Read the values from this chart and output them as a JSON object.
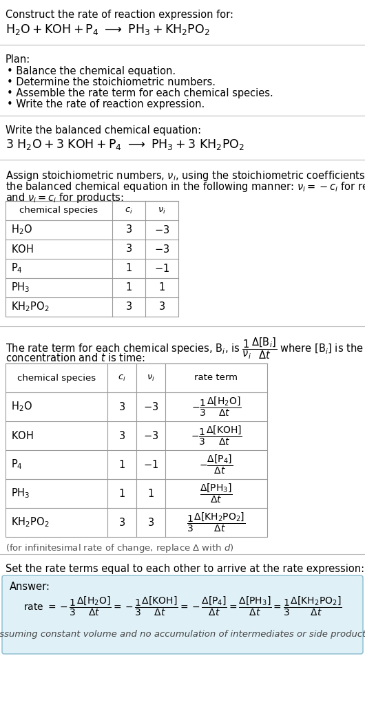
{
  "bg_color": "#ffffff",
  "text_color": "#000000",
  "gray_text": "#666666",
  "light_blue_bg": "#dff0f7",
  "table_border_color": "#999999",
  "sep_line_color": "#bbbbbb",
  "title_text": "Construct the rate of reaction expression for:",
  "plan_header": "Plan:",
  "plan_items": [
    "• Balance the chemical equation.",
    "• Determine the stoichiometric numbers.",
    "• Assemble the rate term for each chemical species.",
    "• Write the rate of reaction expression."
  ],
  "balanced_header": "Write the balanced chemical equation:",
  "set_equal_text": "Set the rate terms equal to each other to arrive at the rate expression:",
  "answer_label": "Answer:",
  "footer_note": "(assuming constant volume and no accumulation of intermediates or side products)"
}
